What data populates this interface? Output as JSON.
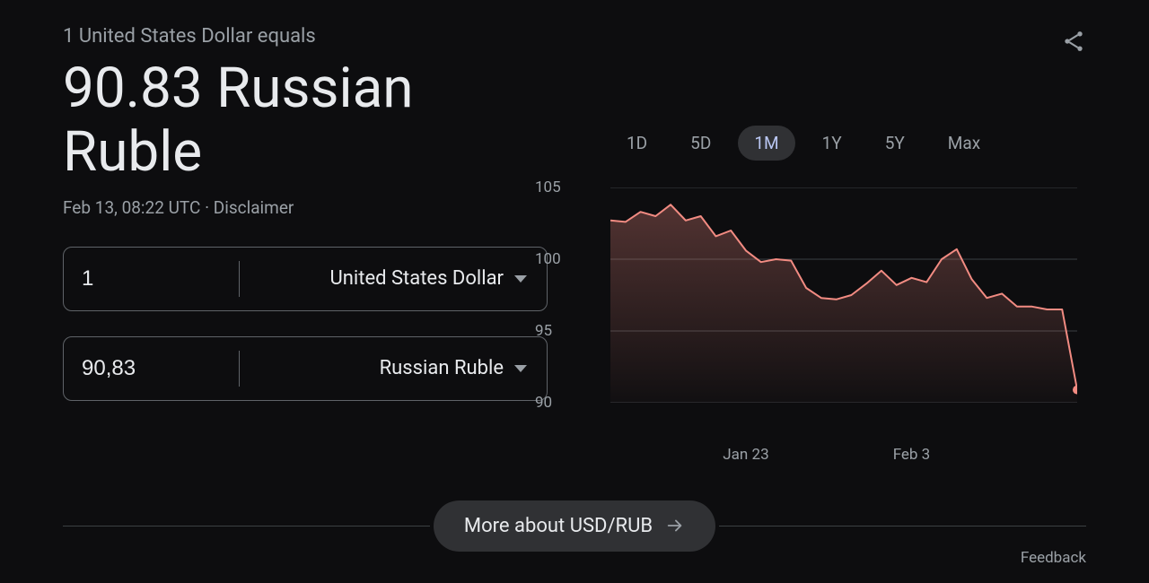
{
  "subtitle": "1 United States Dollar equals",
  "headline": "90.83 Russian Ruble",
  "timestamp": "Feb 13, 08:22 UTC",
  "separator": " · ",
  "disclaimer": "Disclaimer",
  "from": {
    "amount": "1",
    "currency": "United States Dollar"
  },
  "to": {
    "amount": "90,83",
    "currency": "Russian Ruble"
  },
  "ranges": [
    "1D",
    "5D",
    "1M",
    "1Y",
    "5Y",
    "Max"
  ],
  "active_range": "1M",
  "more_label": "More about USD/RUB",
  "feedback_label": "Feedback",
  "chart": {
    "type": "area",
    "ylim": [
      90,
      105
    ],
    "ytick_step": 5,
    "yticks": [
      105,
      100,
      95,
      90
    ],
    "xticks": [
      {
        "label": "Jan 23",
        "index": 9
      },
      {
        "label": "Feb 3",
        "index": 20
      }
    ],
    "values": [
      102.7,
      102.6,
      103.3,
      103.0,
      103.8,
      102.7,
      103.0,
      101.6,
      102.0,
      100.6,
      99.8,
      100.0,
      99.9,
      98.0,
      97.3,
      97.2,
      97.5,
      98.3,
      99.2,
      98.2,
      98.7,
      98.4,
      100.0,
      100.7,
      98.6,
      97.3,
      97.6,
      96.7,
      96.7,
      96.5,
      96.5,
      90.9
    ],
    "line_color": "#f28b82",
    "fill_top": "rgba(242,139,130,0.30)",
    "fill_bottom": "rgba(242,139,130,0.02)",
    "grid_color": "#3c4043",
    "end_marker_color": "#f28b82",
    "line_width": 2,
    "marker_radius": 5,
    "background": "#0d0d0f",
    "label_fontsize": 17
  }
}
